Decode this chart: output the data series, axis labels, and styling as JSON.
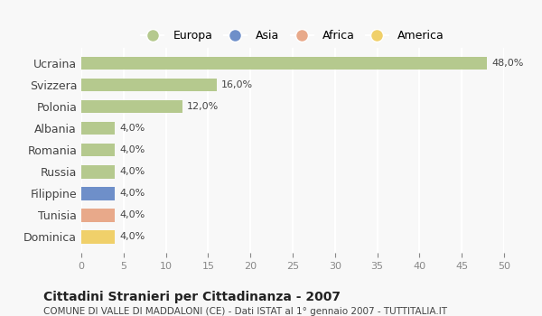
{
  "countries": [
    "Ucraina",
    "Svizzera",
    "Polonia",
    "Albania",
    "Romania",
    "Russia",
    "Filippine",
    "Tunisia",
    "Dominica"
  ],
  "values": [
    48.0,
    16.0,
    12.0,
    4.0,
    4.0,
    4.0,
    4.0,
    4.0,
    4.0
  ],
  "colors": [
    "#b5c98e",
    "#b5c98e",
    "#b5c98e",
    "#b5c98e",
    "#b5c98e",
    "#b5c98e",
    "#6e8fc9",
    "#e8a98a",
    "#f0d06a"
  ],
  "legend_items": [
    {
      "label": "Europa",
      "color": "#b5c98e"
    },
    {
      "label": "Asia",
      "color": "#6e8fc9"
    },
    {
      "label": "Africa",
      "color": "#e8a98a"
    },
    {
      "label": "America",
      "color": "#f0d06a"
    }
  ],
  "xlim": [
    0,
    50
  ],
  "xticks": [
    0,
    5,
    10,
    15,
    20,
    25,
    30,
    35,
    40,
    45,
    50
  ],
  "title": "Cittadini Stranieri per Cittadinanza - 2007",
  "subtitle": "COMUNE DI VALLE DI MADDALONI (CE) - Dati ISTAT al 1° gennaio 2007 - TUTTITALIA.IT",
  "background_color": "#f8f8f8",
  "grid_color": "#ffffff"
}
